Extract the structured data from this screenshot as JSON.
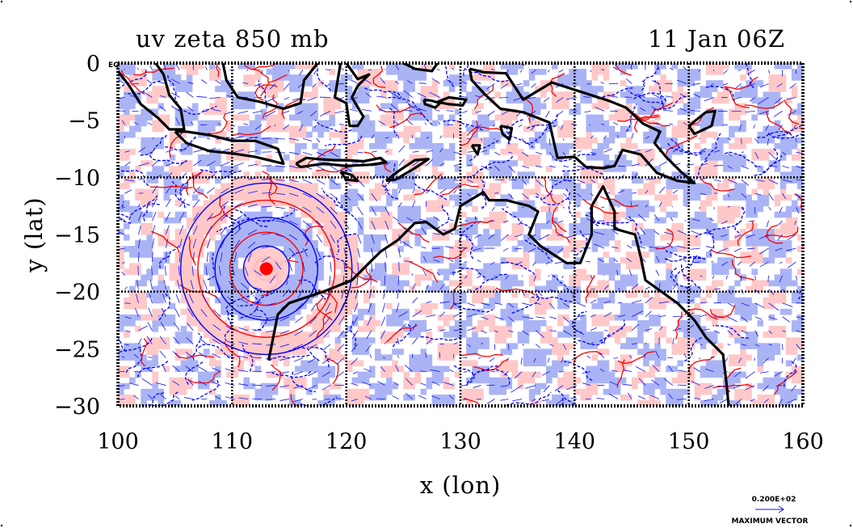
{
  "title_left": "uv zeta 850 mb",
  "title_right": "11 Jan 06Z",
  "xlabel": "x (lon)",
  "ylabel": "y (lat)",
  "equator_label": "EQ",
  "vector_legend": {
    "value": "0.200E+02",
    "label": "MAXIMUM VECTOR"
  },
  "colors": {
    "positive_contour": "#ff0000",
    "positive_fill": "#ffc8c8",
    "negative_contour": "#0000ff",
    "negative_fill": "#aab4f5",
    "coastline": "#000000",
    "vectors": "#1010ff"
  },
  "map_data": {
    "type": "contour-vector-map",
    "x_range": [
      100,
      160
    ],
    "y_range": [
      -30,
      0
    ],
    "x_ticks": [
      100,
      110,
      120,
      130,
      140,
      150,
      160
    ],
    "y_ticks": [
      0,
      -5,
      -10,
      -15,
      -20,
      -25,
      -30
    ],
    "x_tick_labels": [
      "100",
      "110",
      "120",
      "130",
      "140",
      "150",
      "160"
    ],
    "y_tick_labels": [
      "0",
      "−5",
      "−10",
      "−15",
      "−20",
      "−25",
      "−30"
    ],
    "gridlines_lon": [
      110,
      120,
      130,
      140,
      150
    ],
    "gridlines_lat": [
      -10,
      -20
    ],
    "cyclone_center": [
      113,
      -18
    ],
    "coastlines": [
      [
        [
          113.2,
          -26
        ],
        [
          114,
          -22
        ],
        [
          115,
          -21
        ],
        [
          118,
          -20
        ],
        [
          120.5,
          -19
        ],
        [
          122,
          -17.5
        ],
        [
          123,
          -16.5
        ],
        [
          124.5,
          -15.5
        ],
        [
          126,
          -14
        ],
        [
          127,
          -13.9
        ],
        [
          128.5,
          -15
        ],
        [
          129.5,
          -14.5
        ],
        [
          130,
          -12.5
        ],
        [
          132,
          -11.3
        ],
        [
          132.5,
          -12
        ],
        [
          134,
          -12
        ],
        [
          136,
          -12.5
        ],
        [
          136.8,
          -13
        ],
        [
          136,
          -15
        ],
        [
          137,
          -16
        ],
        [
          139.3,
          -17.5
        ],
        [
          140.5,
          -17.5
        ],
        [
          141.5,
          -15
        ],
        [
          141.5,
          -12.5
        ],
        [
          142.5,
          -10.8
        ],
        [
          143.5,
          -13
        ],
        [
          143.5,
          -14.5
        ],
        [
          145.3,
          -15
        ],
        [
          145.8,
          -17
        ],
        [
          146.2,
          -19
        ],
        [
          149,
          -21
        ],
        [
          150.5,
          -22.5
        ],
        [
          151.5,
          -24
        ],
        [
          153,
          -25.5
        ],
        [
          153.3,
          -28
        ],
        [
          153.5,
          -30
        ]
      ],
      [
        [
          105,
          -6
        ],
        [
          106,
          -6
        ],
        [
          108,
          -6.3
        ],
        [
          110,
          -6.8
        ],
        [
          112,
          -6.8
        ],
        [
          114,
          -7.5
        ],
        [
          114.5,
          -8.8
        ],
        [
          112,
          -8.2
        ],
        [
          110,
          -7.9
        ],
        [
          108,
          -7.7
        ],
        [
          106,
          -7
        ],
        [
          105,
          -6
        ]
      ],
      [
        [
          100,
          -0.7
        ],
        [
          101,
          -2
        ],
        [
          102,
          -3.6
        ],
        [
          103.5,
          -4.8
        ],
        [
          104.5,
          -5.8
        ],
        [
          105.8,
          -5.8
        ],
        [
          105.5,
          -4
        ],
        [
          104.5,
          -2.8
        ],
        [
          104,
          -1
        ],
        [
          103.3,
          0
        ]
      ],
      [
        [
          109.2,
          0
        ],
        [
          109.5,
          -1.5
        ],
        [
          110.5,
          -3
        ],
        [
          112.5,
          -3.4
        ],
        [
          114.5,
          -4
        ],
        [
          116,
          -3.5
        ],
        [
          116.3,
          -1.5
        ],
        [
          117.5,
          0
        ]
      ],
      [
        [
          120,
          0
        ],
        [
          121,
          -1.4
        ],
        [
          122,
          -1
        ],
        [
          121,
          -2
        ],
        [
          120.5,
          -3
        ],
        [
          121.5,
          -4.7
        ],
        [
          121,
          -5.5
        ],
        [
          120.3,
          -5.5
        ],
        [
          120,
          -3.5
        ],
        [
          119,
          -3
        ],
        [
          119.5,
          0
        ]
      ],
      [
        [
          130.8,
          -0.5
        ],
        [
          132,
          -0.8
        ],
        [
          134,
          -0.9
        ],
        [
          135.5,
          -3.2
        ],
        [
          138,
          -1.7
        ],
        [
          140.5,
          -2.5
        ],
        [
          143,
          -3.3
        ],
        [
          144.5,
          -3.9
        ],
        [
          146,
          -5.3
        ],
        [
          147.5,
          -6
        ],
        [
          147,
          -7
        ],
        [
          148,
          -8.2
        ],
        [
          149.3,
          -9.5
        ],
        [
          150.5,
          -10.5
        ],
        [
          149,
          -10.3
        ],
        [
          147.2,
          -9.6
        ],
        [
          145.8,
          -8
        ],
        [
          144.2,
          -7.6
        ],
        [
          143.5,
          -9
        ],
        [
          142.5,
          -9.2
        ],
        [
          141,
          -9.1
        ],
        [
          140,
          -8.2
        ],
        [
          138.5,
          -8.3
        ],
        [
          137.8,
          -5.2
        ],
        [
          135.5,
          -4.3
        ],
        [
          133.5,
          -4
        ],
        [
          132.2,
          -2.8
        ],
        [
          131,
          -1.5
        ],
        [
          130.8,
          -0.5
        ]
      ],
      [
        [
          150,
          -5.5
        ],
        [
          151.5,
          -4.3
        ],
        [
          152.3,
          -4.2
        ],
        [
          152,
          -5.5
        ],
        [
          150.5,
          -6.2
        ],
        [
          150,
          -5.5
        ]
      ],
      [
        [
          115.6,
          -8.8
        ],
        [
          116.5,
          -8.3
        ],
        [
          117.5,
          -8.4
        ],
        [
          119,
          -8.5
        ],
        [
          120,
          -8.5
        ],
        [
          121.5,
          -8.6
        ],
        [
          123,
          -8.3
        ],
        [
          123.5,
          -8.7
        ],
        [
          122,
          -8.9
        ],
        [
          120,
          -9
        ],
        [
          118,
          -8.8
        ],
        [
          116,
          -9.1
        ],
        [
          115.6,
          -8.8
        ]
      ],
      [
        [
          119.5,
          -9.5
        ],
        [
          120.5,
          -9.8
        ],
        [
          121,
          -10.3
        ],
        [
          120,
          -10.2
        ],
        [
          119.5,
          -9.5
        ]
      ],
      [
        [
          123.5,
          -10.3
        ],
        [
          124.5,
          -9.5
        ],
        [
          126,
          -8.5
        ],
        [
          127.2,
          -8.4
        ],
        [
          126,
          -9.2
        ],
        [
          124.3,
          -10.2
        ],
        [
          123.5,
          -10.3
        ]
      ],
      [
        [
          126.8,
          -3.2
        ],
        [
          127.5,
          -3.3
        ],
        [
          128.2,
          -3.5
        ],
        [
          127.8,
          -3.9
        ],
        [
          126.9,
          -3.6
        ],
        [
          126.8,
          -3.2
        ]
      ],
      [
        [
          128,
          -3.4
        ],
        [
          129,
          -3
        ],
        [
          130.5,
          -3.2
        ],
        [
          130.2,
          -3.7
        ],
        [
          129,
          -3.6
        ],
        [
          128,
          -3.4
        ]
      ],
      [
        [
          133.5,
          -5.5
        ],
        [
          134.5,
          -5.7
        ],
        [
          134.3,
          -6.7
        ],
        [
          133.7,
          -6.2
        ],
        [
          133.5,
          -5.5
        ]
      ],
      [
        [
          131,
          -7.2
        ],
        [
          131.7,
          -7.2
        ],
        [
          131.5,
          -8
        ],
        [
          131,
          -7.2
        ]
      ],
      [
        [
          125,
          0
        ],
        [
          126,
          -0.5
        ],
        [
          127.5,
          -0.7
        ],
        [
          128,
          0
        ]
      ]
    ]
  }
}
